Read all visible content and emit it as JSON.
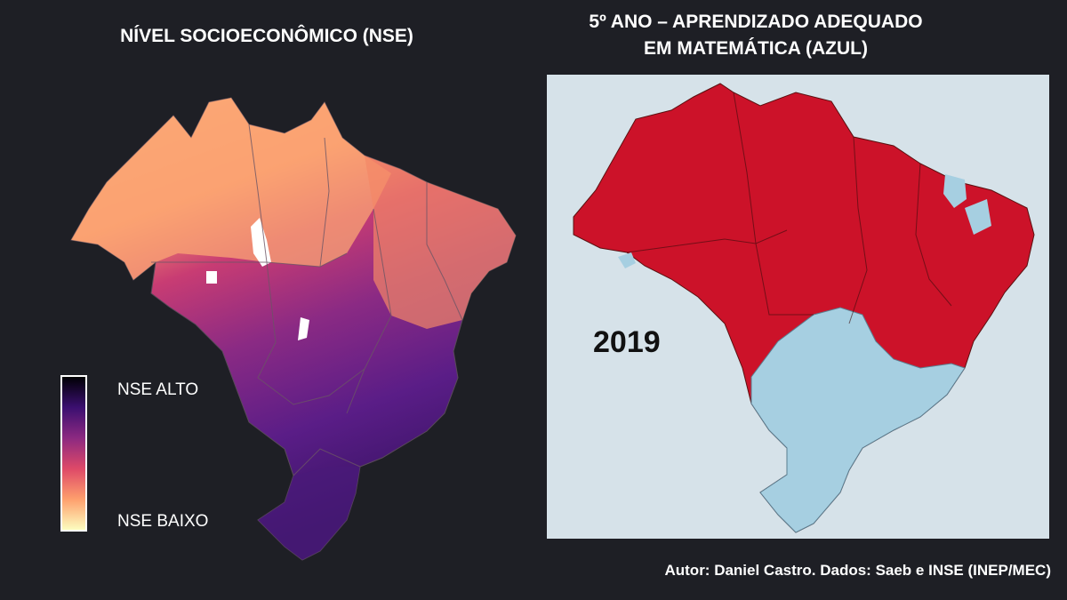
{
  "left_panel": {
    "title": "NÍVEL SOCIOECONÔMICO (NSE)",
    "legend": {
      "high_label": "NSE ALTO",
      "low_label": "NSE BAIXO",
      "gradient_colors": [
        "#000004",
        "#3b0f70",
        "#8c2981",
        "#de4968",
        "#fe9f6d",
        "#fcfdbf"
      ]
    }
  },
  "right_panel": {
    "title_line1": "5º ANO – APRENDIZADO ADEQUADO",
    "title_line2": "EM MATEMÁTICA (AZUL)",
    "year": "2019",
    "colors": {
      "adequate": "#a6cfe1",
      "not_adequate": "#cc1229",
      "background": "#d6e2e9"
    }
  },
  "credit": "Autor: Daniel Castro. Dados: Saeb e INSE (INEP/MEC)"
}
